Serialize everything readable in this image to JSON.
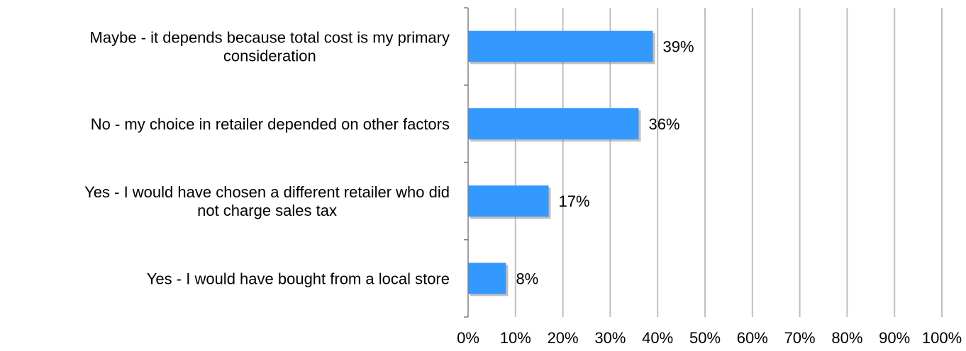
{
  "chart_data": {
    "type": "bar",
    "orientation": "horizontal",
    "categories": [
      [
        "Maybe - it depends because total cost is my primary",
        "consideration"
      ],
      [
        "No - my choice in retailer depended on other factors"
      ],
      [
        "Yes - I would have chosen a different retailer who did",
        "not charge sales tax"
      ],
      [
        "Yes - I would have bought from a local store"
      ]
    ],
    "values": [
      39,
      36,
      17,
      8
    ],
    "data_labels": [
      "39%",
      "36%",
      "17%",
      "8%"
    ],
    "xlim": [
      0,
      100
    ],
    "x_ticks": [
      0,
      10,
      20,
      30,
      40,
      50,
      60,
      70,
      80,
      90,
      100
    ],
    "x_tick_labels": [
      "0%",
      "10%",
      "20%",
      "30%",
      "40%",
      "50%",
      "60%",
      "70%",
      "80%",
      "90%",
      "100%"
    ],
    "grid": true,
    "legend": "none",
    "title": "",
    "xlabel": "",
    "ylabel": "",
    "bar_color": "#3399ff",
    "bar_shadow_color": "#8c8c8c"
  }
}
